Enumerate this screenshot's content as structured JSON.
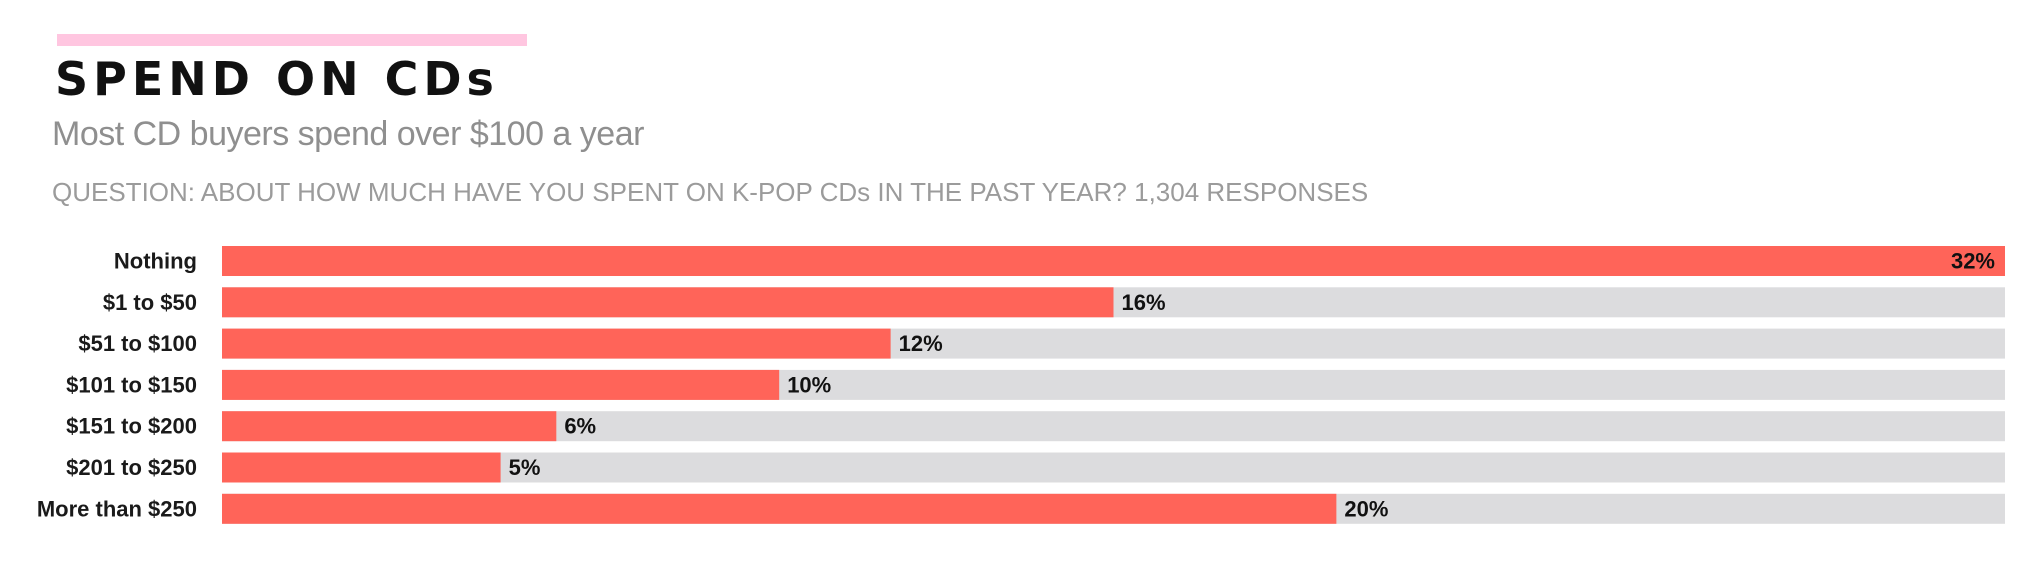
{
  "header": {
    "title": "SPEND ON CDs",
    "subtitle": "Most CD buyers spend over $100 a year",
    "question": "QUESTION: ABOUT HOW MUCH HAVE YOU SPENT ON K-POP CDs IN THE PAST YEAR? 1,304 RESPONSES"
  },
  "colors": {
    "accent": "#ffc6e0",
    "bar": "#ff6459",
    "track": "#dcdcde"
  },
  "chart_data": {
    "type": "bar",
    "orientation": "horizontal",
    "title": "SPEND ON CDs",
    "subtitle": "Most CD buyers spend over $100 a year",
    "categories": [
      "Nothing",
      "$1 to $50",
      "$51 to $100",
      "$101 to $150",
      "$151 to $200",
      "$201 to $250",
      "More than $250"
    ],
    "values": [
      32,
      16,
      12,
      10,
      6,
      5,
      20
    ],
    "value_labels": [
      "32%",
      "16%",
      "12%",
      "10%",
      "6%",
      "5%",
      "20%"
    ],
    "unit": "%",
    "xlim": [
      0,
      32
    ],
    "grid": false,
    "legend": "none"
  }
}
